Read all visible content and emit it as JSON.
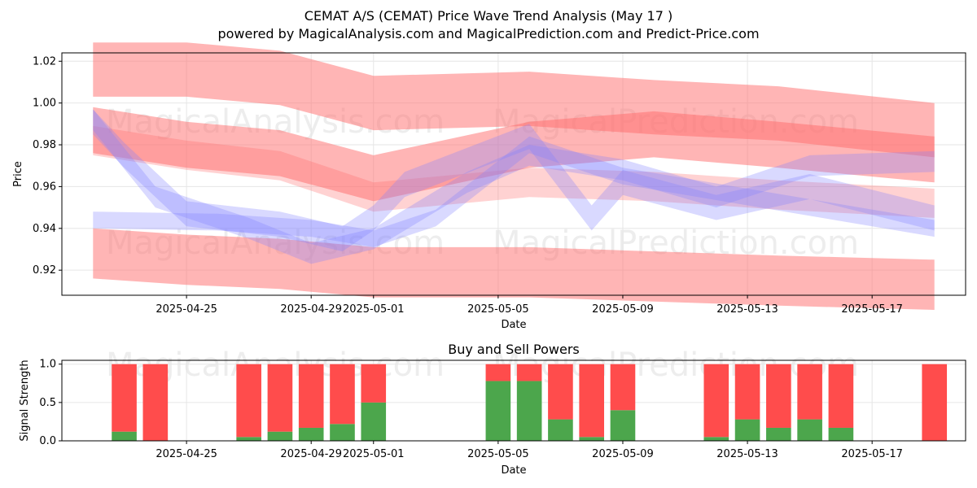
{
  "header": {
    "title": "CEMAT A/S (CEMAT) Price Wave Trend Analysis (May 17 )",
    "subtitle": "powered by MagicalAnalysis.com and MagicalPrediction.com and Predict-Price.com"
  },
  "watermarks": [
    "MagicalAnalysis.com",
    "MagicalPrediction.com"
  ],
  "chart_data": [
    {
      "type": "area",
      "name": "price-wave-chart",
      "xlabel": "Date",
      "ylabel": "Price",
      "x_ticks": [
        "2025-04-25",
        "2025-04-29",
        "2025-05-01",
        "2025-05-05",
        "2025-05-09",
        "2025-05-13",
        "2025-05-17"
      ],
      "y_ticks": [
        0.92,
        0.94,
        0.96,
        0.98,
        1.0,
        1.02
      ],
      "ylim": [
        0.908,
        1.024
      ],
      "xlim": [
        "2025-04-21",
        "2025-05-20"
      ],
      "grid": true,
      "colors": {
        "bands": "#ff6b6b",
        "waves": "#8080ff"
      },
      "bands": [
        {
          "x": [
            "2025-04-22",
            "2025-04-25",
            "2025-04-28",
            "2025-05-01",
            "2025-05-06",
            "2025-05-10",
            "2025-05-14",
            "2025-05-19"
          ],
          "y": [
            1.016,
            1.016,
            1.012,
            1.0,
            1.002,
            0.998,
            0.995,
            0.987
          ],
          "width": 0.026
        },
        {
          "x": [
            "2025-04-22",
            "2025-04-25",
            "2025-04-28",
            "2025-05-01",
            "2025-05-06",
            "2025-05-10",
            "2025-05-14",
            "2025-05-19"
          ],
          "y": [
            0.987,
            0.98,
            0.976,
            0.964,
            0.98,
            0.985,
            0.98,
            0.973
          ],
          "width": 0.022
        },
        {
          "x": [
            "2025-04-22",
            "2025-04-25",
            "2025-04-28",
            "2025-05-01",
            "2025-05-06",
            "2025-05-10",
            "2025-05-14",
            "2025-05-19"
          ],
          "y": [
            0.928,
            0.925,
            0.923,
            0.919,
            0.919,
            0.917,
            0.915,
            0.913
          ],
          "width": 0.024
        },
        {
          "x": [
            "2025-04-22",
            "2025-04-25",
            "2025-04-28",
            "2025-05-01",
            "2025-05-06",
            "2025-05-10",
            "2025-05-14",
            "2025-05-19"
          ],
          "y": [
            0.982,
            0.975,
            0.97,
            0.955,
            0.962,
            0.96,
            0.956,
            0.952
          ],
          "width": 0.014
        }
      ],
      "waves": [
        {
          "x": [
            "2025-04-22",
            "2025-04-23",
            "2025-04-25",
            "2025-04-28",
            "2025-04-30",
            "2025-05-01",
            "2025-05-02",
            "2025-05-06",
            "2025-05-08",
            "2025-05-09",
            "2025-05-12",
            "2025-05-15",
            "2025-05-19"
          ],
          "y": [
            0.991,
            0.975,
            0.947,
            0.942,
            0.935,
            0.945,
            0.961,
            0.984,
            0.945,
            0.962,
            0.95,
            0.96,
            0.945
          ],
          "width": 0.012
        },
        {
          "x": [
            "2025-04-22",
            "2025-04-24",
            "2025-04-27",
            "2025-04-29",
            "2025-05-01",
            "2025-05-04",
            "2025-05-06",
            "2025-05-09",
            "2025-05-12",
            "2025-05-15",
            "2025-05-19"
          ],
          "y": [
            0.992,
            0.955,
            0.94,
            0.928,
            0.935,
            0.962,
            0.975,
            0.968,
            0.955,
            0.97,
            0.972
          ],
          "width": 0.01
        },
        {
          "x": [
            "2025-04-22",
            "2025-04-26",
            "2025-04-29",
            "2025-05-01",
            "2025-05-03",
            "2025-05-06",
            "2025-05-09",
            "2025-05-13",
            "2025-05-19"
          ],
          "y": [
            0.944,
            0.943,
            0.94,
            0.935,
            0.945,
            0.98,
            0.965,
            0.955,
            0.94
          ],
          "width": 0.008
        }
      ]
    },
    {
      "type": "bar",
      "name": "buy-sell-powers-chart",
      "title": "Buy and Sell Powers",
      "xlabel": "Date",
      "ylabel": "Signal Strength",
      "x_ticks": [
        "2025-04-25",
        "2025-04-29",
        "2025-05-01",
        "2025-05-05",
        "2025-05-09",
        "2025-05-13",
        "2025-05-17"
      ],
      "y_ticks": [
        "0.0",
        "0.5",
        "1.0"
      ],
      "ylim": [
        0,
        1.05
      ],
      "xlim": [
        "2025-04-21",
        "2025-05-20"
      ],
      "grid": true,
      "colors": {
        "buy": "#4ca64c",
        "sell": "#ff4c4c"
      },
      "categories": [
        "2025-04-23",
        "2025-04-24",
        "2025-04-27",
        "2025-04-28",
        "2025-04-29",
        "2025-04-30",
        "2025-05-01",
        "2025-05-05",
        "2025-05-06",
        "2025-05-07",
        "2025-05-08",
        "2025-05-09",
        "2025-05-12",
        "2025-05-13",
        "2025-05-14",
        "2025-05-15",
        "2025-05-16",
        "2025-05-19"
      ],
      "series": [
        {
          "name": "Buy",
          "values": [
            0.12,
            0.0,
            0.05,
            0.12,
            0.17,
            0.22,
            0.5,
            0.78,
            0.78,
            0.28,
            0.05,
            0.4,
            0.05,
            0.28,
            0.17,
            0.28,
            0.17,
            0.0
          ]
        },
        {
          "name": "Sell",
          "values": [
            0.88,
            1.0,
            0.95,
            0.88,
            0.83,
            0.78,
            0.5,
            0.22,
            0.22,
            0.72,
            0.95,
            0.6,
            0.95,
            0.72,
            0.83,
            0.72,
            0.83,
            1.0
          ]
        }
      ]
    }
  ]
}
